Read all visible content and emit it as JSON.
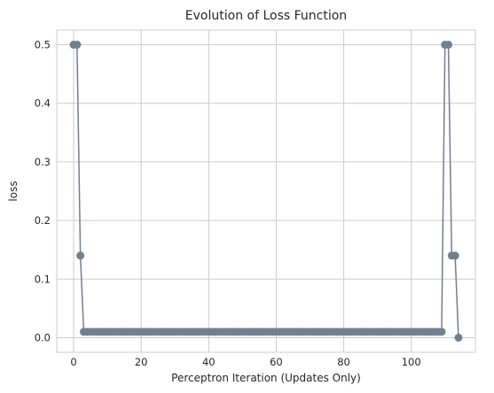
{
  "chart_data": {
    "type": "line",
    "title": "Evolution of Loss Function",
    "xlabel": "Perceptron Iteration (Updates Only)",
    "ylabel": "loss",
    "xlim": [
      -5,
      119
    ],
    "ylim": [
      -0.025,
      0.525
    ],
    "xticks": [
      0,
      20,
      40,
      60,
      80,
      100
    ],
    "yticks": [
      0.0,
      0.1,
      0.2,
      0.3,
      0.4,
      0.5
    ],
    "grid": true,
    "line_color": "#708090",
    "series": [
      {
        "x": [
          0,
          1,
          2,
          3,
          4,
          5,
          6,
          7,
          8,
          9,
          10,
          11,
          12,
          13,
          14,
          15,
          16,
          17,
          18,
          19,
          20,
          21,
          22,
          23,
          24,
          25,
          26,
          27,
          28,
          29,
          30,
          31,
          32,
          33,
          34,
          35,
          36,
          37,
          38,
          39,
          40,
          41,
          42,
          43,
          44,
          45,
          46,
          47,
          48,
          49,
          50,
          51,
          52,
          53,
          54,
          55,
          56,
          57,
          58,
          59,
          60,
          61,
          62,
          63,
          64,
          65,
          66,
          67,
          68,
          69,
          70,
          71,
          72,
          73,
          74,
          75,
          76,
          77,
          78,
          79,
          80,
          81,
          82,
          83,
          84,
          85,
          86,
          87,
          88,
          89,
          90,
          91,
          92,
          93,
          94,
          95,
          96,
          97,
          98,
          99,
          100,
          101,
          102,
          103,
          104,
          105,
          106,
          107,
          108,
          109,
          110,
          111,
          112,
          113,
          114
        ],
        "y": [
          0.5,
          0.5,
          0.14,
          0.01,
          0.01,
          0.01,
          0.01,
          0.01,
          0.01,
          0.01,
          0.01,
          0.01,
          0.01,
          0.01,
          0.01,
          0.01,
          0.01,
          0.01,
          0.01,
          0.01,
          0.01,
          0.01,
          0.01,
          0.01,
          0.01,
          0.01,
          0.01,
          0.01,
          0.01,
          0.01,
          0.01,
          0.01,
          0.01,
          0.01,
          0.01,
          0.01,
          0.01,
          0.01,
          0.01,
          0.01,
          0.01,
          0.01,
          0.01,
          0.01,
          0.01,
          0.01,
          0.01,
          0.01,
          0.01,
          0.01,
          0.01,
          0.01,
          0.01,
          0.01,
          0.01,
          0.01,
          0.01,
          0.01,
          0.01,
          0.01,
          0.01,
          0.01,
          0.01,
          0.01,
          0.01,
          0.01,
          0.01,
          0.01,
          0.01,
          0.01,
          0.01,
          0.01,
          0.01,
          0.01,
          0.01,
          0.01,
          0.01,
          0.01,
          0.01,
          0.01,
          0.01,
          0.01,
          0.01,
          0.01,
          0.01,
          0.01,
          0.01,
          0.01,
          0.01,
          0.01,
          0.01,
          0.01,
          0.01,
          0.01,
          0.01,
          0.01,
          0.01,
          0.01,
          0.01,
          0.01,
          0.01,
          0.01,
          0.01,
          0.01,
          0.01,
          0.01,
          0.01,
          0.01,
          0.01,
          0.01,
          0.5,
          0.5,
          0.14,
          0.14,
          0.0
        ]
      }
    ]
  }
}
